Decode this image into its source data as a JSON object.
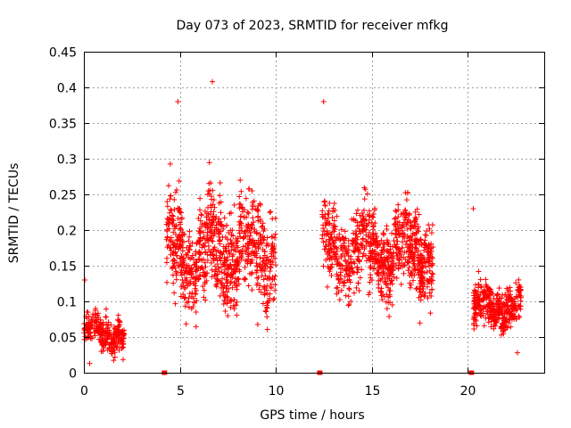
{
  "chart_data": {
    "type": "scatter",
    "title": "Day 073 of 2023, SRMTID for receiver mfkg",
    "xlabel": "GPS time / hours",
    "ylabel": "SRMTID / TECUs",
    "xlim": [
      0,
      24
    ],
    "ylim": [
      0,
      0.45
    ],
    "xticks": [
      0,
      5,
      10,
      15,
      20
    ],
    "xtick_labels": [
      "0",
      "5",
      "10",
      "15",
      "20"
    ],
    "yticks": [
      0,
      0.05,
      0.1,
      0.15,
      0.2,
      0.25,
      0.3,
      0.35,
      0.4,
      0.45
    ],
    "ytick_labels": [
      "0",
      "0.05",
      "0.1",
      "0.15",
      "0.2",
      "0.25",
      "0.3",
      "0.35",
      "0.4",
      "0.45"
    ],
    "grid": true,
    "marker": "+",
    "color": "#ff0000",
    "series": [
      {
        "name": "SRMTID",
        "segments": [
          {
            "x_start": 0.0,
            "x_end": 2.1,
            "y_center": 0.055,
            "y_spread": 0.025,
            "count": 280
          },
          {
            "x_start": 4.3,
            "x_end": 10.0,
            "y_center": 0.17,
            "y_spread": 0.07,
            "count": 900
          },
          {
            "x_start": 12.4,
            "x_end": 18.2,
            "y_center": 0.17,
            "y_spread": 0.055,
            "count": 900
          },
          {
            "x_start": 20.3,
            "x_end": 22.8,
            "y_center": 0.09,
            "y_spread": 0.03,
            "count": 380
          }
        ],
        "notable_points": [
          {
            "x": 6.7,
            "y": 0.408
          },
          {
            "x": 4.9,
            "y": 0.38
          },
          {
            "x": 12.5,
            "y": 0.38
          },
          {
            "x": 0.05,
            "y": 0.13
          },
          {
            "x": 0.3,
            "y": 0.013
          },
          {
            "x": 20.3,
            "y": 0.23
          },
          {
            "x": 22.6,
            "y": 0.028
          }
        ]
      }
    ],
    "zero_markers_x": [
      4.2,
      12.3,
      20.2
    ]
  }
}
